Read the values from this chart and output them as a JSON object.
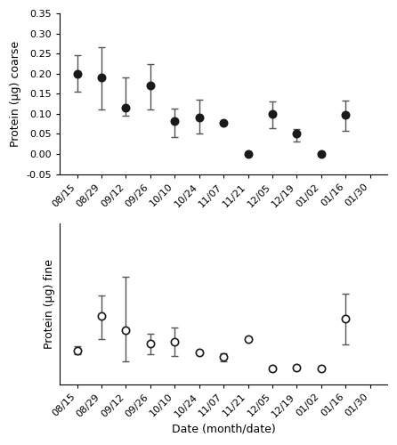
{
  "top": {
    "ylabel": "Protein (μg) coarse",
    "xlabels": [
      "08/15",
      "08/29",
      "09/12",
      "09/26",
      "10/10",
      "10/24",
      "11/07",
      "11/21",
      "12/05",
      "12/19",
      "01/02",
      "01/16",
      "01/30"
    ],
    "y": [
      0.2,
      0.19,
      0.115,
      0.17,
      0.082,
      0.09,
      0.078,
      0.001,
      0.1,
      0.052,
      0.001,
      0.097,
      null
    ],
    "yerr_lo": [
      0.045,
      0.08,
      0.02,
      0.06,
      0.04,
      0.04,
      null,
      null,
      0.035,
      0.02,
      null,
      0.04,
      null
    ],
    "yerr_hi": [
      0.045,
      0.075,
      0.075,
      0.055,
      0.03,
      0.045,
      null,
      null,
      0.03,
      0.01,
      null,
      0.035,
      null
    ],
    "ylim": [
      -0.05,
      0.35
    ],
    "yticks": [
      -0.05,
      0.0,
      0.05,
      0.1,
      0.15,
      0.2,
      0.25,
      0.3,
      0.35
    ],
    "ytick_labels": [
      "-0.05",
      "0.00",
      "0.05",
      "0.10",
      "0.15",
      "0.20",
      "0.25",
      "0.30",
      "0.35"
    ]
  },
  "bottom": {
    "ylabel": "Protein (μg) fine",
    "xlabel": "Date (month/date)",
    "xlabels": [
      "08/15",
      "08/29",
      "09/12",
      "09/26",
      "10/10",
      "10/24",
      "11/07",
      "11/21",
      "12/05",
      "12/19",
      "01/02",
      "01/16",
      "01/30"
    ],
    "y": [
      0.072,
      0.155,
      0.12,
      0.088,
      0.093,
      0.067,
      0.055,
      0.1,
      0.028,
      0.03,
      0.028,
      0.148,
      null
    ],
    "yerr_lo": [
      0.01,
      0.055,
      0.075,
      0.025,
      0.035,
      null,
      0.01,
      null,
      null,
      null,
      null,
      0.062,
      null
    ],
    "yerr_hi": [
      0.01,
      0.05,
      0.13,
      0.025,
      0.035,
      null,
      0.01,
      null,
      null,
      null,
      null,
      0.062,
      null
    ],
    "ylim": [
      -0.01,
      0.38
    ],
    "yticks": [],
    "ytick_labels": []
  },
  "background_color": "#ffffff",
  "marker_color_top": "#1a1a1a",
  "marker_color_bottom": "#ffffff",
  "marker_edge_color": "#1a1a1a",
  "marker_size": 6,
  "ecolor": "#555555",
  "capsize": 3,
  "fontsize_label": 9,
  "fontsize_tick": 8,
  "xtick_rotation": 45
}
